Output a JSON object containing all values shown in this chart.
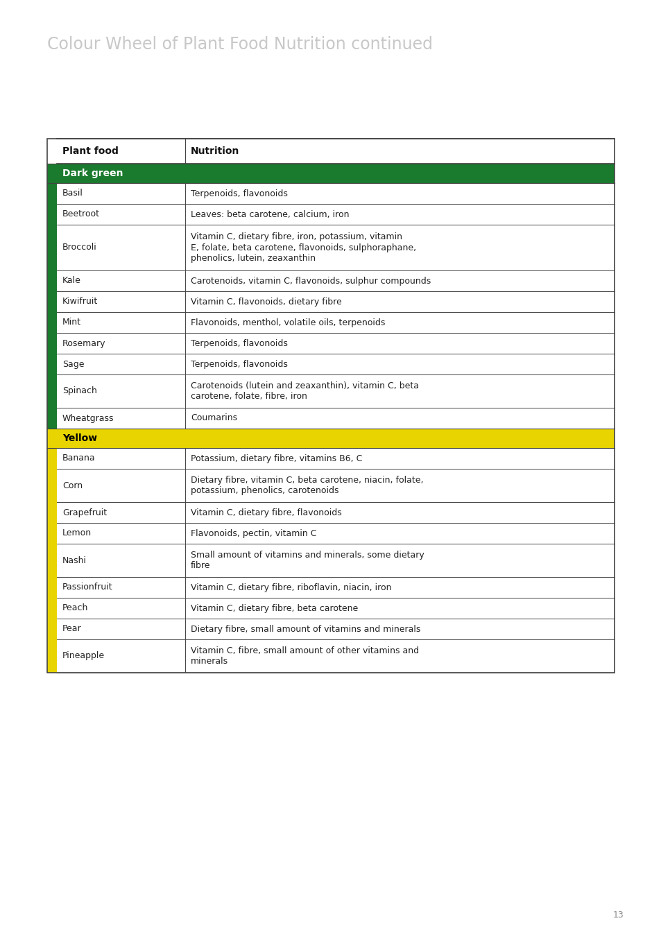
{
  "title": "Colour Wheel of Plant Food Nutrition continued",
  "title_color": "#c8c8c8",
  "page_number": "13",
  "header": [
    "Plant food",
    "Nutrition"
  ],
  "sections": [
    {
      "name": "Dark green",
      "color": "#1a7a2e",
      "text_color": "#ffffff",
      "rows": [
        [
          "Basil",
          "Terpenoids, flavonoids"
        ],
        [
          "Beetroot",
          "Leaves: beta carotene, calcium, iron"
        ],
        [
          "Broccoli",
          "Vitamin C, dietary fibre, iron, potassium, vitamin\nE, folate, beta carotene, flavonoids, sulphoraphane,\nphenolics, lutein, zeaxanthin"
        ],
        [
          "Kale",
          "Carotenoids, vitamin C, flavonoids, sulphur compounds"
        ],
        [
          "Kiwifruit",
          "Vitamin C, flavonoids, dietary fibre"
        ],
        [
          "Mint",
          "Flavonoids, menthol, volatile oils, terpenoids"
        ],
        [
          "Rosemary",
          "Terpenoids, flavonoids"
        ],
        [
          "Sage",
          "Terpenoids, flavonoids"
        ],
        [
          "Spinach",
          "Carotenoids (lutein and zeaxanthin), vitamin C, beta\ncarotene, folate, fibre, iron"
        ],
        [
          "Wheatgrass",
          "Coumarins"
        ]
      ]
    },
    {
      "name": "Yellow",
      "color": "#e8d400",
      "text_color": "#000000",
      "rows": [
        [
          "Banana",
          "Potassium, dietary fibre, vitamins B6, C"
        ],
        [
          "Corn",
          "Dietary fibre, vitamin C, beta carotene, niacin, folate,\npotassium, phenolics, carotenoids"
        ],
        [
          "Grapefruit",
          "Vitamin C, dietary fibre, flavonoids"
        ],
        [
          "Lemon",
          "Flavonoids, pectin, vitamin C"
        ],
        [
          "Nashi",
          "Small amount of vitamins and minerals, some dietary\nfibre"
        ],
        [
          "Passionfruit",
          "Vitamin C, dietary fibre, riboflavin, niacin, iron"
        ],
        [
          "Peach",
          "Vitamin C, dietary fibre, beta carotene"
        ],
        [
          "Pear",
          "Dietary fibre, small amount of vitamins and minerals"
        ],
        [
          "Pineapple",
          "Vitamin C, fibre, small amount of other vitamins and\nminerals"
        ]
      ]
    }
  ],
  "background_color": "#ffffff",
  "border_color": "#444444",
  "font_size_body": 9.0,
  "font_size_header": 10.0,
  "font_size_section": 10.0,
  "font_size_title": 17
}
